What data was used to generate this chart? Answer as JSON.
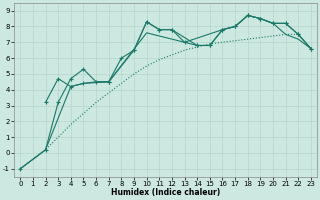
{
  "title": "",
  "xlabel": "Humidex (Indice chaleur)",
  "ylabel": "",
  "xlim": [
    -0.5,
    23.5
  ],
  "ylim": [
    -1.5,
    9.5
  ],
  "xticks": [
    0,
    1,
    2,
    3,
    4,
    5,
    6,
    7,
    8,
    9,
    10,
    11,
    12,
    13,
    14,
    15,
    16,
    17,
    18,
    19,
    20,
    21,
    22,
    23
  ],
  "yticks": [
    -1,
    0,
    1,
    2,
    3,
    4,
    5,
    6,
    7,
    8,
    9
  ],
  "background_color": "#cce8e0",
  "grid_color": "#b8d8d0",
  "line_color": "#1a7a6a",
  "figsize": [
    3.2,
    2.0
  ],
  "dpi": 100,
  "lines": [
    {
      "x": [
        0,
        2,
        3,
        4,
        5,
        6,
        7,
        8,
        9,
        10,
        11,
        12,
        13,
        14,
        15,
        16,
        17,
        18,
        19,
        20,
        21,
        22,
        23
      ],
      "y": [
        -1.0,
        0.2,
        1.0,
        1.8,
        2.5,
        3.2,
        3.8,
        4.4,
        5.0,
        5.5,
        5.9,
        6.2,
        6.5,
        6.7,
        6.9,
        7.0,
        7.1,
        7.2,
        7.3,
        7.4,
        7.5,
        7.5,
        6.6
      ],
      "style": ":",
      "marker": null,
      "linewidth": 0.8
    },
    {
      "x": [
        0,
        2,
        3,
        4,
        5,
        6,
        7,
        8,
        9,
        10,
        11,
        12,
        13,
        14,
        15,
        16,
        17,
        18,
        19,
        20,
        21,
        22,
        23
      ],
      "y": [
        -1.0,
        0.2,
        3.2,
        4.7,
        5.3,
        4.5,
        4.5,
        6.0,
        6.5,
        8.3,
        7.8,
        7.8,
        7.0,
        6.8,
        6.8,
        7.8,
        8.0,
        8.7,
        8.5,
        8.2,
        8.2,
        7.5,
        6.6
      ],
      "style": "-",
      "marker": "+",
      "linewidth": 0.8
    },
    {
      "x": [
        0,
        2,
        4,
        5,
        6,
        7,
        10,
        13,
        16,
        17,
        18,
        19,
        20,
        21,
        22,
        23
      ],
      "y": [
        -1.0,
        0.2,
        4.2,
        4.4,
        4.5,
        4.5,
        7.6,
        7.0,
        7.8,
        8.0,
        8.7,
        8.5,
        8.2,
        7.5,
        7.2,
        6.6
      ],
      "style": "-",
      "marker": null,
      "linewidth": 0.8
    },
    {
      "x": [
        2,
        3,
        4,
        5,
        7,
        9,
        10,
        11,
        12,
        14,
        15,
        16,
        17,
        18,
        19,
        20,
        21,
        22,
        23
      ],
      "y": [
        3.2,
        4.7,
        4.2,
        4.4,
        4.5,
        6.5,
        8.3,
        7.8,
        7.8,
        6.8,
        6.8,
        7.8,
        8.0,
        8.7,
        8.5,
        8.2,
        8.2,
        7.5,
        6.6
      ],
      "style": "-",
      "marker": "+",
      "linewidth": 0.8
    }
  ]
}
